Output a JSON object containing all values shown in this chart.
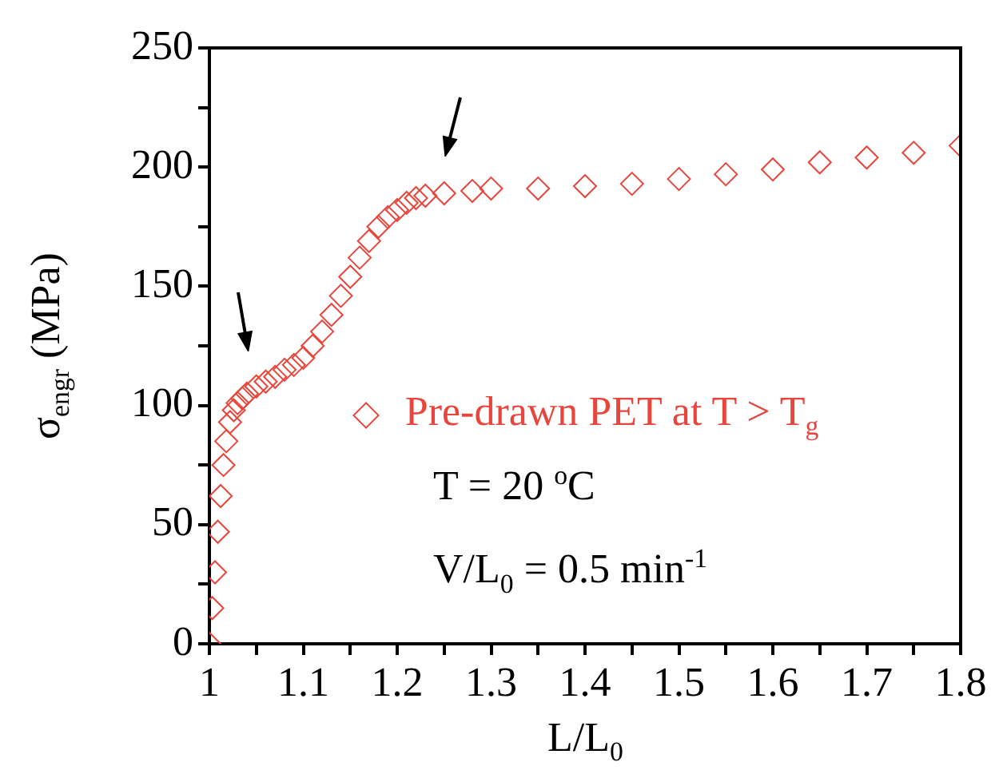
{
  "chart_data": {
    "type": "scatter",
    "xlabel": "L/L$_{0}$",
    "ylabel": "σ$_{engr}$ (MPa)",
    "xlim": [
      1,
      1.8
    ],
    "ylim": [
      0,
      250
    ],
    "xticks": [
      1,
      {
        "value": 1.05,
        "label": null
      },
      1.1,
      {
        "value": 1.15,
        "label": null
      },
      1.2,
      {
        "value": 1.25,
        "label": null
      },
      1.3,
      {
        "value": 1.35,
        "label": null
      },
      1.4,
      {
        "value": 1.45,
        "label": null
      },
      1.5,
      {
        "value": 1.55,
        "label": null
      },
      1.6,
      {
        "value": 1.65,
        "label": null
      },
      1.7,
      {
        "value": 1.75,
        "label": null
      },
      1.8
    ],
    "yticks": [
      0,
      {
        "value": 25,
        "label": null
      },
      50,
      {
        "value": 75,
        "label": null
      },
      100,
      {
        "value": 125,
        "label": null
      },
      150,
      {
        "value": 175,
        "label": null
      },
      200,
      {
        "value": 225,
        "label": null
      },
      250
    ],
    "marker": "diamond",
    "legend": "right",
    "series": [
      {
        "name": "Pre-drawn PET at T > T$_{g}$",
        "color": "#e8453c",
        "x": [
          1.0,
          1.003,
          1.006,
          1.009,
          1.012,
          1.015,
          1.018,
          1.022,
          1.026,
          1.03,
          1.035,
          1.04,
          1.05,
          1.06,
          1.07,
          1.08,
          1.09,
          1.1,
          1.11,
          1.12,
          1.13,
          1.14,
          1.15,
          1.16,
          1.17,
          1.18,
          1.19,
          1.2,
          1.21,
          1.22,
          1.23,
          1.25,
          1.28,
          1.3,
          1.35,
          1.4,
          1.45,
          1.5,
          1.55,
          1.6,
          1.65,
          1.7,
          1.75,
          1.8
        ],
        "values": [
          0,
          15,
          30,
          47,
          62,
          75,
          85,
          93,
          98,
          101,
          103,
          105,
          108,
          110,
          112,
          115,
          117,
          120,
          125,
          131,
          138,
          146,
          154,
          162,
          169,
          175,
          179,
          182,
          185,
          187,
          188,
          189,
          190,
          191,
          191,
          192,
          193,
          195,
          197,
          199,
          202,
          204,
          206,
          209
        ]
      }
    ],
    "annotations": [
      "T = 20 $^{o}$C",
      "V/L$_{0}$ = 0.5 min$^{-1}$"
    ]
  }
}
